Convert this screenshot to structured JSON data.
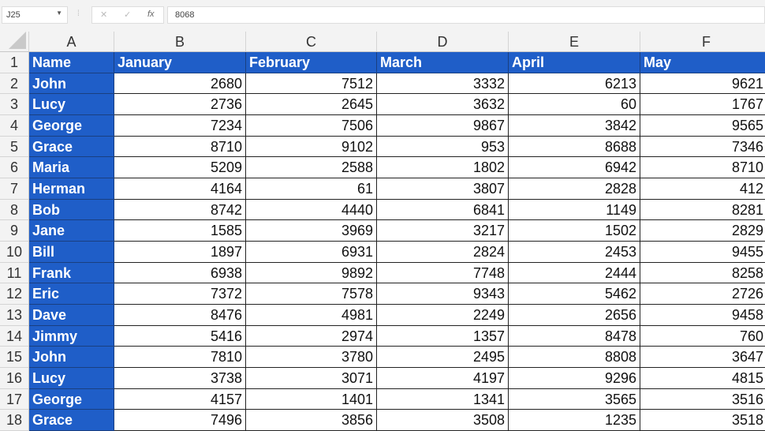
{
  "name_box": "J25",
  "formula_bar": {
    "value": "8068",
    "cancel_icon": "x-icon",
    "enter_icon": "check-icon",
    "function_label": "fx"
  },
  "columns": [
    "A",
    "B",
    "C",
    "D",
    "E",
    "F"
  ],
  "header": [
    "Name",
    "January",
    "February",
    "March",
    "April",
    "May"
  ],
  "rows": [
    [
      "John",
      "2680",
      "7512",
      "3332",
      "6213",
      "9621"
    ],
    [
      "Lucy",
      "2736",
      "2645",
      "3632",
      "60",
      "1767"
    ],
    [
      "George",
      "7234",
      "7506",
      "9867",
      "3842",
      "9565"
    ],
    [
      "Grace",
      "8710",
      "9102",
      "953",
      "8688",
      "7346"
    ],
    [
      "Maria",
      "5209",
      "2588",
      "1802",
      "6942",
      "8710"
    ],
    [
      "Herman",
      "4164",
      "61",
      "3807",
      "2828",
      "412"
    ],
    [
      "Bob",
      "8742",
      "4440",
      "6841",
      "1149",
      "8281"
    ],
    [
      "Jane",
      "1585",
      "3969",
      "3217",
      "1502",
      "2829"
    ],
    [
      "Bill",
      "1897",
      "6931",
      "2824",
      "2453",
      "9455"
    ],
    [
      "Frank",
      "6938",
      "9892",
      "7748",
      "2444",
      "8258"
    ],
    [
      "Eric",
      "7372",
      "7578",
      "9343",
      "5462",
      "2726"
    ],
    [
      "Dave",
      "8476",
      "4981",
      "2249",
      "2656",
      "9458"
    ],
    [
      "Jimmy",
      "5416",
      "2974",
      "1357",
      "8478",
      "760"
    ],
    [
      "John",
      "7810",
      "3780",
      "2495",
      "8808",
      "3647"
    ],
    [
      "Lucy",
      "3738",
      "3071",
      "4197",
      "9296",
      "4815"
    ],
    [
      "George",
      "4157",
      "1401",
      "1341",
      "3565",
      "3516"
    ],
    [
      "Grace",
      "7496",
      "3856",
      "3508",
      "1235",
      "3518"
    ]
  ],
  "colors": {
    "header_fill": "#1f5ec8",
    "header_text": "#ffffff"
  }
}
